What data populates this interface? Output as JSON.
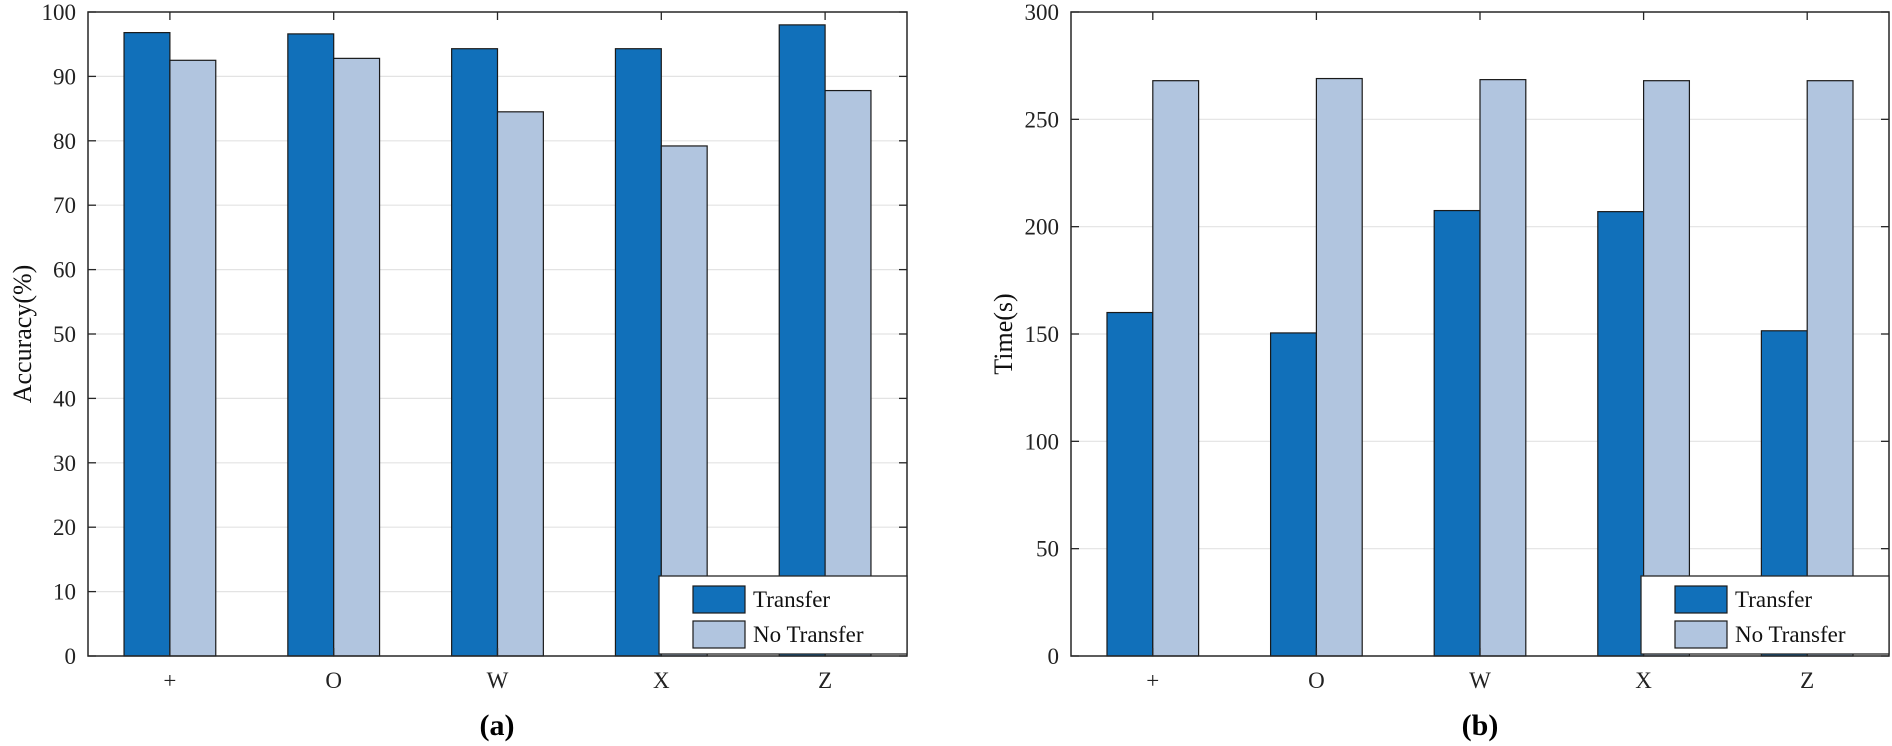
{
  "colors": {
    "transfer": "#1170BA",
    "no_transfer": "#B1C5DF",
    "grid": "#E3E3E3",
    "axis": "#262626"
  },
  "chart_data": [
    {
      "type": "bar",
      "panel_label": "(a)",
      "categories": [
        "+",
        "O",
        "W",
        "X",
        "Z"
      ],
      "series": [
        {
          "name": "Transfer",
          "values": [
            96.8,
            96.6,
            94.3,
            94.3,
            98.0
          ]
        },
        {
          "name": "No Transfer",
          "values": [
            92.5,
            92.8,
            84.5,
            79.2,
            87.8
          ]
        }
      ],
      "xlabel": "",
      "ylabel": "Accuracy(%)",
      "ylim": [
        0,
        100
      ],
      "yticks": [
        "0",
        "10",
        "20",
        "30",
        "40",
        "50",
        "60",
        "70",
        "80",
        "90",
        "100"
      ],
      "grid": true,
      "legend": "bottom-right"
    },
    {
      "type": "bar",
      "panel_label": "(b)",
      "categories": [
        "+",
        "O",
        "W",
        "X",
        "Z"
      ],
      "series": [
        {
          "name": "Transfer",
          "values": [
            160,
            150.5,
            207.5,
            207,
            151.5
          ]
        },
        {
          "name": "No Transfer",
          "values": [
            268,
            269,
            268.5,
            268,
            268
          ]
        }
      ],
      "xlabel": "",
      "ylabel": "Time(s)",
      "ylim": [
        0,
        300
      ],
      "yticks": [
        "0",
        "50",
        "100",
        "150",
        "200",
        "250",
        "300"
      ],
      "grid": true,
      "legend": "bottom-right"
    }
  ]
}
